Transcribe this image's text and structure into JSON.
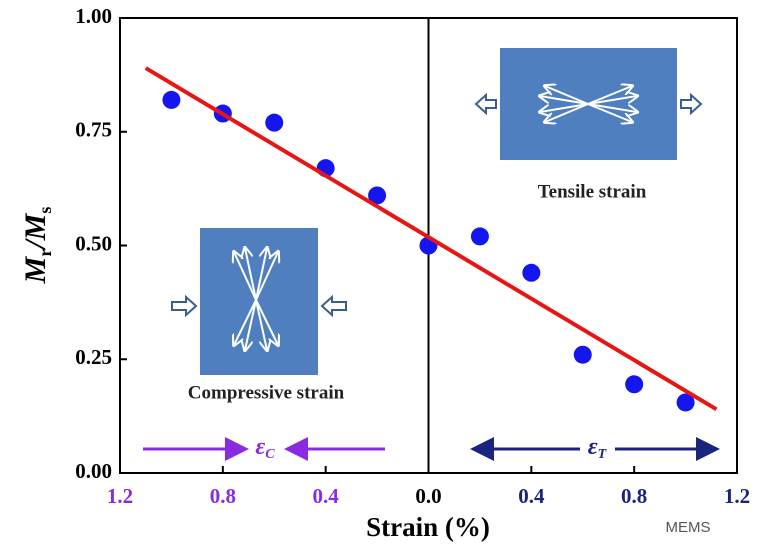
{
  "chart_data": {
    "type": "scatter",
    "xlabel": "Strain (%)",
    "ylabel": [
      "M",
      "r",
      "/M",
      "s"
    ],
    "xlim": [
      -1.2,
      1.2
    ],
    "ylim": [
      0,
      1
    ],
    "xticks": [
      {
        "value": -1.2,
        "label": "1.2"
      },
      {
        "value": -0.8,
        "label": "0.8"
      },
      {
        "value": -0.4,
        "label": "0.4"
      },
      {
        "value": 0,
        "label": "0.0"
      },
      {
        "value": 0.4,
        "label": "0.4"
      },
      {
        "value": 0.8,
        "label": "0.8"
      },
      {
        "value": 1.2,
        "label": "1.2"
      }
    ],
    "xtick_colors": [
      "#8a2be2",
      "#8a2be2",
      "#8a2be2",
      "#000000",
      "#1a237e",
      "#1a237e",
      "#1a237e"
    ],
    "yticks": [
      {
        "value": 0,
        "label": "0.00"
      },
      {
        "value": 0.25,
        "label": "0.25"
      },
      {
        "value": 0.5,
        "label": "0.50"
      },
      {
        "value": 0.75,
        "label": "0.75"
      },
      {
        "value": 1,
        "label": "1.00"
      }
    ],
    "series": [
      {
        "color": "#1515f0",
        "x": [
          -1.0,
          -0.8,
          -0.6,
          -0.4,
          -0.2,
          0.0,
          0.2,
          0.4,
          0.6,
          0.8,
          1.0
        ],
        "values": [
          0.82,
          0.79,
          0.77,
          0.67,
          0.61,
          0.5,
          0.52,
          0.44,
          0.26,
          0.195,
          0.155
        ]
      },
      {
        "type": "line",
        "color": "#e81515",
        "x": [
          -1.1,
          1.12
        ],
        "values": [
          0.89,
          0.14
        ]
      }
    ],
    "annotations": {
      "tensile": "Tensile strain",
      "compressive": "Compressive strain",
      "eps_c": [
        "ε",
        "C"
      ],
      "eps_t": [
        "ε",
        "T"
      ]
    },
    "watermark": "MEMS"
  }
}
